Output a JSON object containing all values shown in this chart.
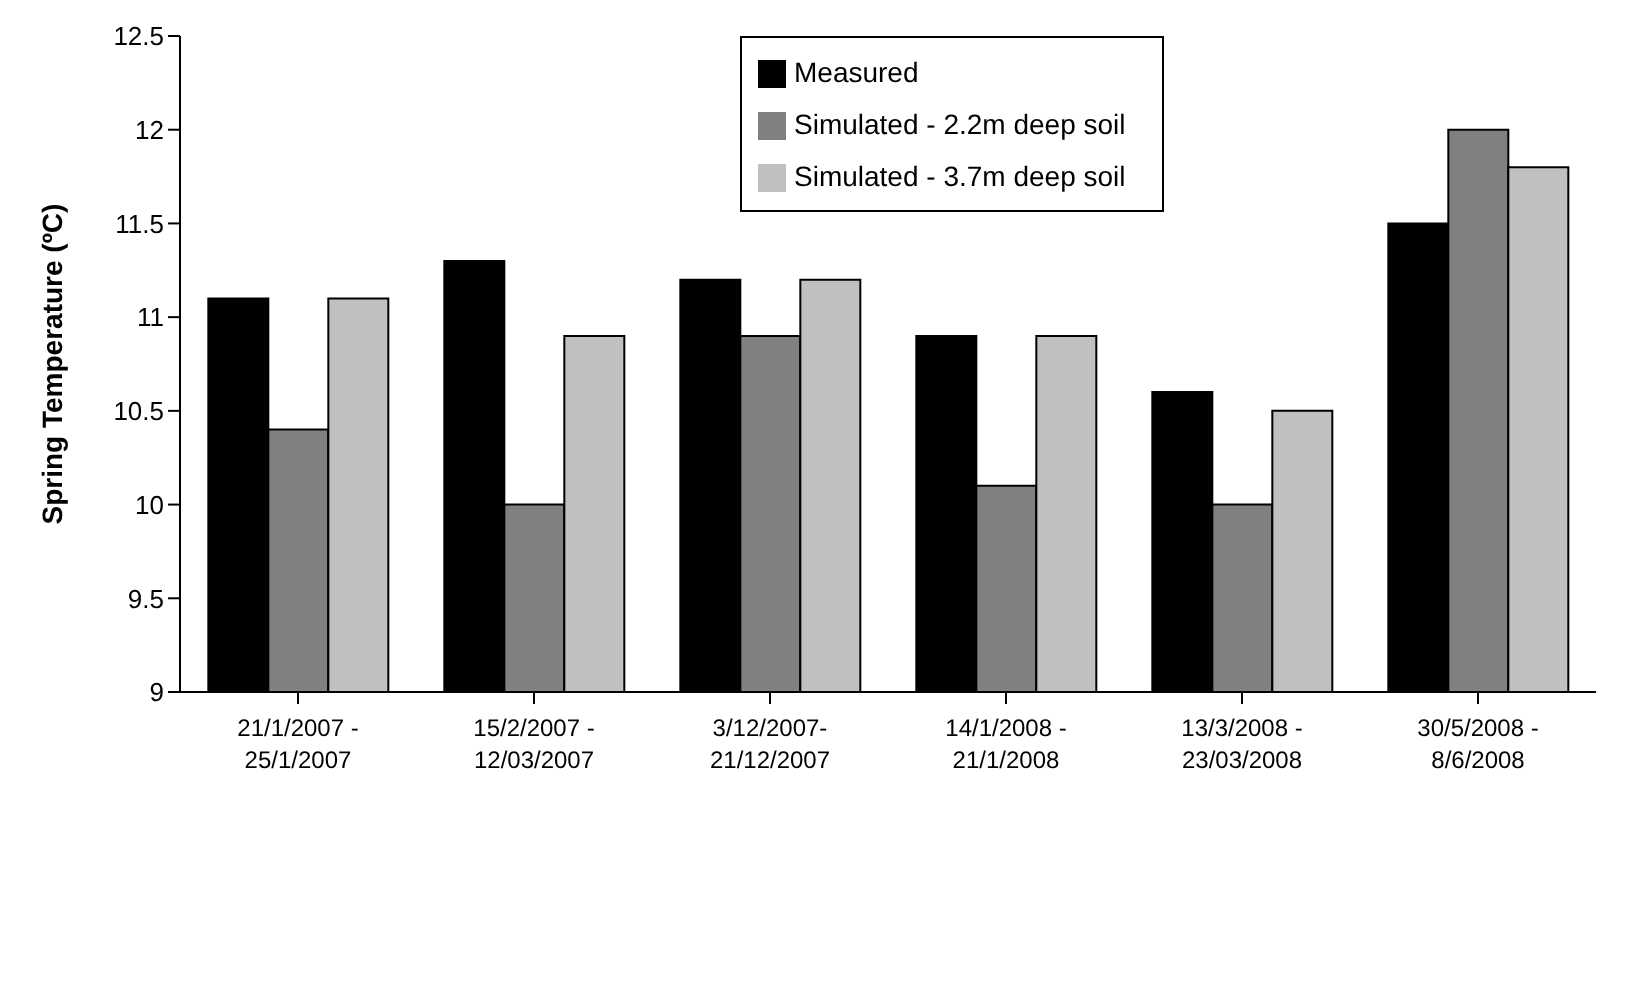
{
  "chart_data": {
    "type": "bar",
    "ylabel": "Spring Temperature (ºC)",
    "categories": [
      "21/1/2007 - 25/1/2007",
      "15/2/2007 - 12/03/2007",
      "3/12/2007-21/12/2007",
      "14/1/2008 - 21/1/2008",
      "13/3/2008 - 23/03/2008",
      "30/5/2008 - 8/6/2008"
    ],
    "series": [
      {
        "name": "Measured",
        "color": "#000000",
        "values": [
          11.1,
          11.3,
          11.2,
          10.9,
          10.6,
          11.5
        ]
      },
      {
        "name": "Simulated - 2.2m deep soil",
        "color": "#808080",
        "values": [
          10.4,
          10.0,
          10.9,
          10.1,
          10.0,
          12.0
        ]
      },
      {
        "name": "Simulated - 3.7m deep soil",
        "color": "#c0c0c0",
        "values": [
          11.1,
          10.9,
          11.2,
          10.9,
          10.5,
          11.8
        ]
      }
    ],
    "ylim": [
      9,
      12.5
    ],
    "yticks": [
      9,
      9.5,
      10,
      10.5,
      11,
      11.5,
      12,
      12.5
    ],
    "grid": false,
    "legend": "top"
  }
}
